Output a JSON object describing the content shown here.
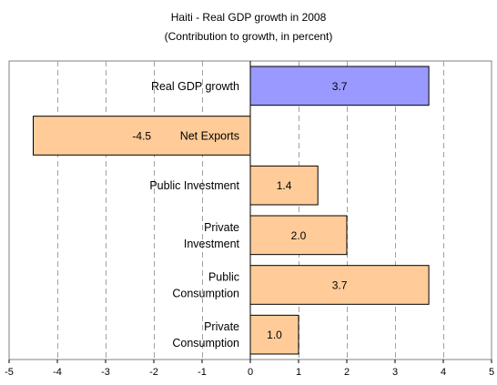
{
  "chart_data": {
    "type": "bar",
    "orientation": "horizontal",
    "title": "Haiti - Real GDP growth in 2008",
    "subtitle": "(Contribution to growth, in percent)",
    "xlim": [
      -5,
      5
    ],
    "x_ticks": [
      -5,
      -4,
      -3,
      -2,
      -1,
      0,
      1,
      2,
      3,
      4,
      5
    ],
    "grid": "vertical dashed",
    "categories": [
      {
        "lines": [
          "Real GDP growth"
        ],
        "value": 3.7,
        "label": "3.7",
        "color": "#9999ff"
      },
      {
        "lines": [
          "Net Exports"
        ],
        "value": -4.5,
        "label": "-4.5",
        "color": "#ffcc99"
      },
      {
        "lines": [
          "Public Investment"
        ],
        "value": 1.4,
        "label": "1.4",
        "color": "#ffcc99"
      },
      {
        "lines": [
          "Private",
          "Investment"
        ],
        "value": 2.0,
        "label": "2.0",
        "color": "#ffcc99"
      },
      {
        "lines": [
          "Public",
          "Consumption"
        ],
        "value": 3.7,
        "label": "3.7",
        "color": "#ffcc99"
      },
      {
        "lines": [
          "Private",
          "Consumption"
        ],
        "value": 1.0,
        "label": "1.0",
        "color": "#ffcc99"
      }
    ]
  }
}
